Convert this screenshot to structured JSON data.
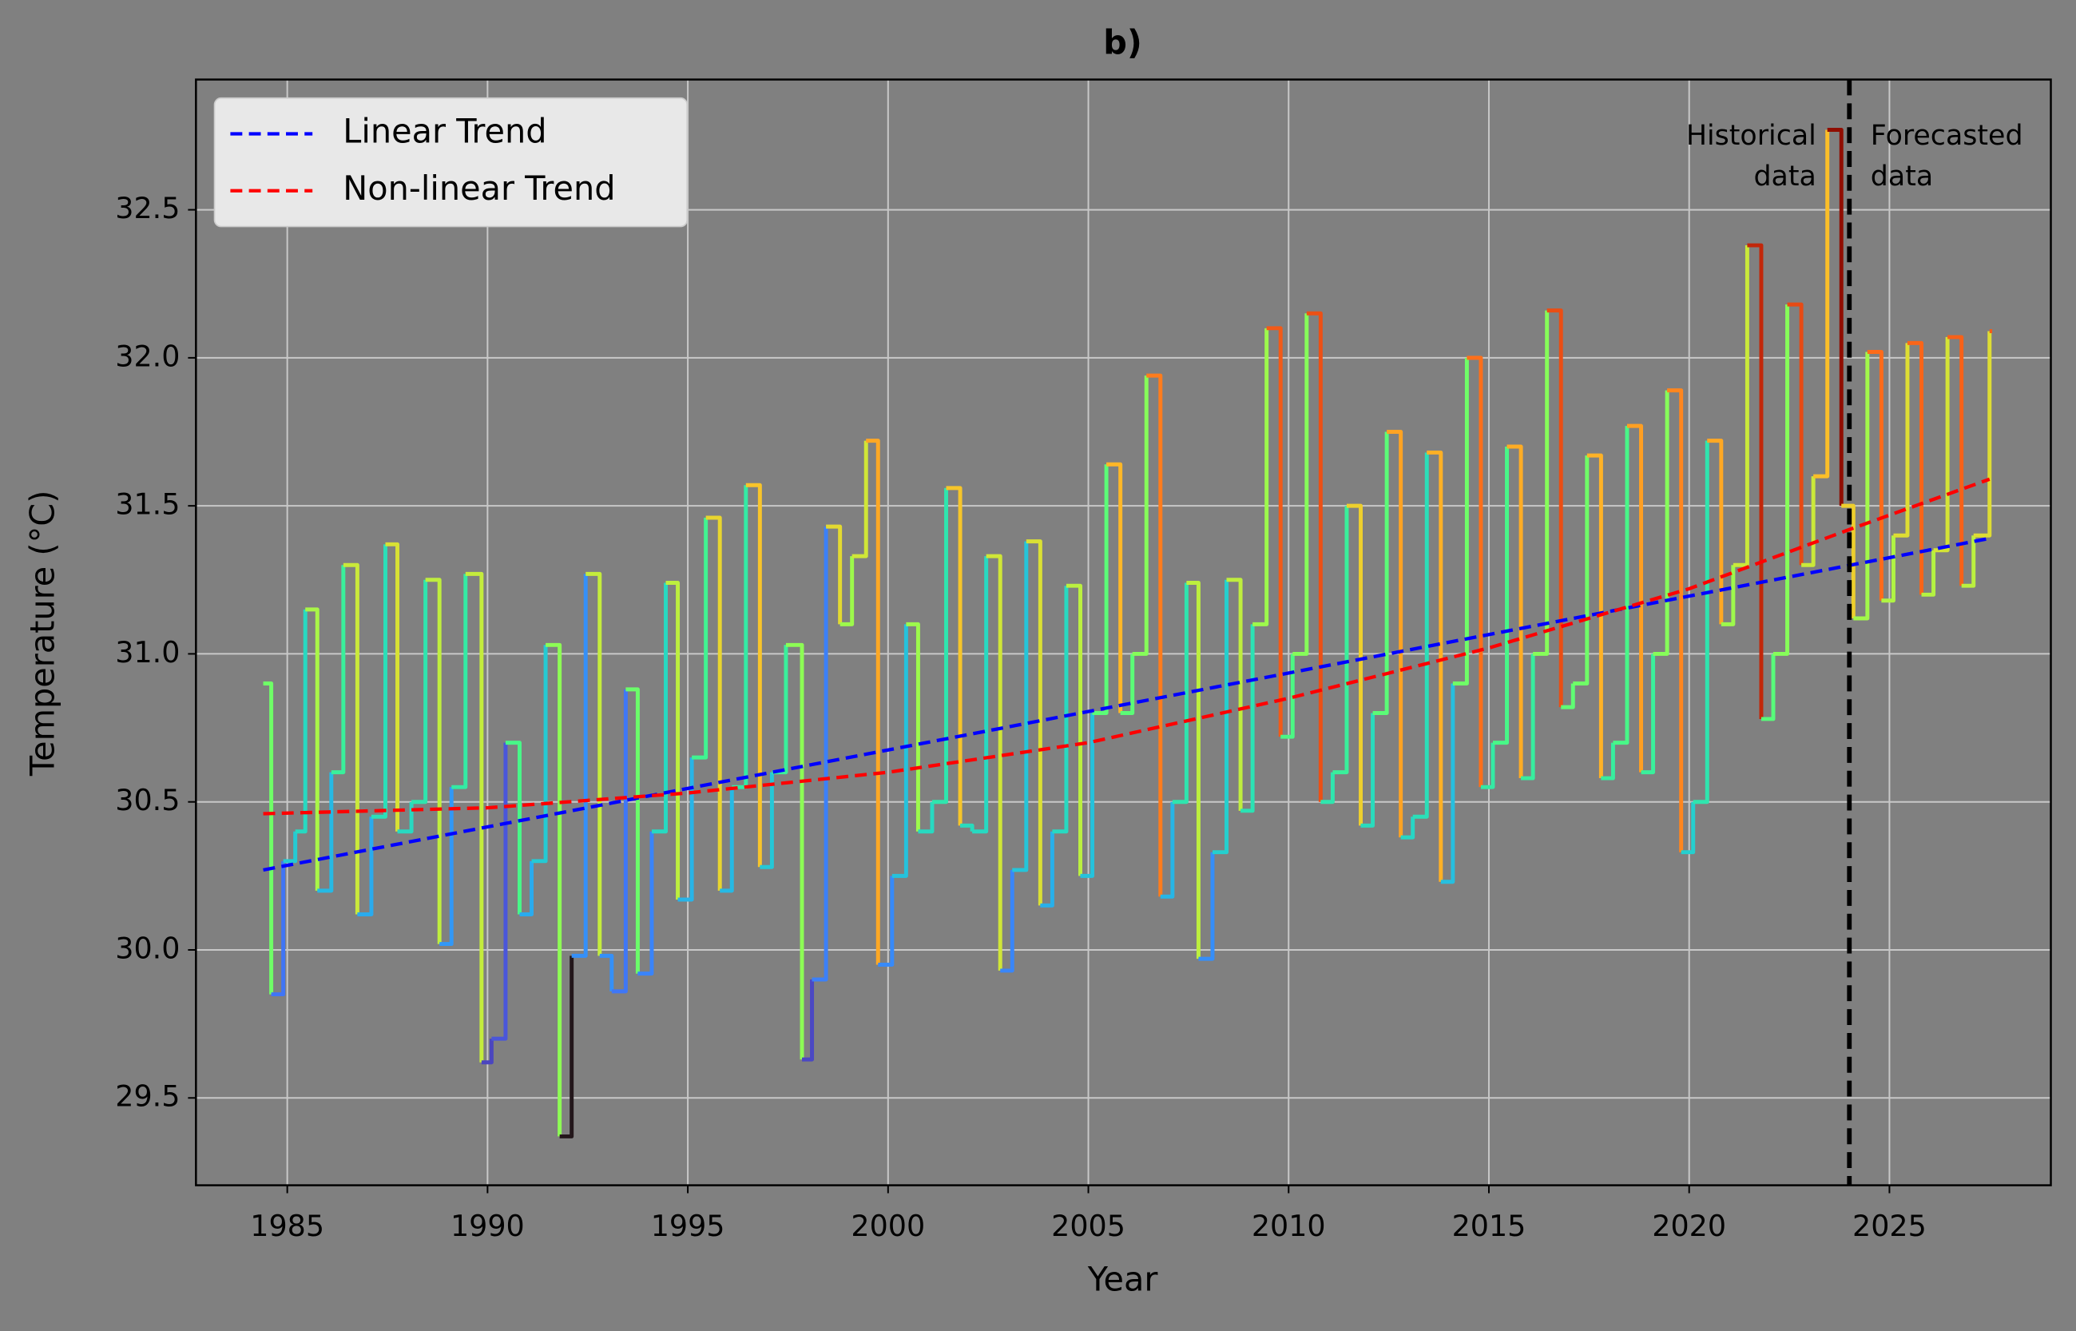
{
  "chart_data": {
    "type": "step",
    "title": "b)",
    "xlabel": "Year",
    "ylabel": "Temperature (°C)",
    "colormap": "turbo",
    "grid": true,
    "legend": "upper left",
    "xlim": [
      1982.72,
      2029.03
    ],
    "ylim": [
      29.205,
      32.94
    ],
    "xticks": [
      1985,
      1990,
      1995,
      2000,
      2005,
      2010,
      2015,
      2020,
      2025
    ],
    "yticks": [
      29.5,
      {
        "value": 30,
        "label": "30.0"
      },
      30.5,
      {
        "value": 31,
        "label": "31.0"
      },
      31.5,
      {
        "value": 32,
        "label": "32.0"
      },
      32.5
    ],
    "x": [
      1984.4,
      1984.6,
      1984.9,
      1985.2,
      1985.45,
      1985.75,
      1986.1,
      1986.4,
      1986.75,
      1987.1,
      1987.45,
      1987.75,
      1988.1,
      1988.45,
      1988.8,
      1989.1,
      1989.45,
      1989.85,
      1990.1,
      1990.45,
      1990.8,
      1991.1,
      1991.45,
      1991.8,
      1992.1,
      1992.45,
      1992.8,
      1993.1,
      1993.45,
      1993.75,
      1994.1,
      1994.45,
      1994.75,
      1995.1,
      1995.45,
      1995.8,
      1996.1,
      1996.45,
      1996.8,
      1997.1,
      1997.45,
      1997.85,
      1998.1,
      1998.45,
      1998.8,
      1999.1,
      1999.45,
      1999.75,
      2000.1,
      2000.45,
      2000.75,
      2001.1,
      2001.45,
      2001.8,
      2002.1,
      2002.45,
      2002.8,
      2003.1,
      2003.45,
      2003.8,
      2004.1,
      2004.45,
      2004.8,
      2005.1,
      2005.45,
      2005.8,
      2006.1,
      2006.45,
      2006.8,
      2007.1,
      2007.45,
      2007.75,
      2008.1,
      2008.45,
      2008.8,
      2009.1,
      2009.45,
      2009.8,
      2010.1,
      2010.45,
      2010.8,
      2011.1,
      2011.45,
      2011.8,
      2012.1,
      2012.45,
      2012.8,
      2013.1,
      2013.45,
      2013.8,
      2014.1,
      2014.45,
      2014.8,
      2015.1,
      2015.45,
      2015.8,
      2016.1,
      2016.45,
      2016.8,
      2017.1,
      2017.45,
      2017.8,
      2018.1,
      2018.45,
      2018.8,
      2019.1,
      2019.45,
      2019.8,
      2020.1,
      2020.45,
      2020.8,
      2021.1,
      2021.45,
      2021.8,
      2022.1,
      2022.45,
      2022.8,
      2023.1,
      2023.45,
      2023.8,
      2024.1,
      2024.45,
      2024.8,
      2025.1,
      2025.45,
      2025.8,
      2026.1,
      2026.45,
      2026.8,
      2027.1,
      2027.5
    ],
    "values": [
      30.9,
      29.85,
      30.3,
      30.4,
      31.15,
      30.2,
      30.6,
      31.3,
      30.12,
      30.45,
      31.37,
      30.4,
      30.5,
      31.25,
      30.02,
      30.55,
      31.27,
      29.62,
      29.7,
      30.7,
      30.12,
      30.3,
      31.03,
      29.37,
      29.98,
      31.27,
      29.98,
      29.86,
      30.88,
      29.92,
      30.4,
      31.24,
      30.17,
      30.65,
      31.46,
      30.2,
      30.55,
      31.57,
      30.28,
      30.6,
      31.03,
      29.63,
      29.9,
      31.43,
      31.1,
      31.33,
      31.72,
      29.95,
      30.25,
      31.1,
      30.4,
      30.5,
      31.56,
      30.42,
      30.4,
      31.33,
      29.93,
      30.27,
      31.38,
      30.15,
      30.4,
      31.23,
      30.25,
      30.8,
      31.64,
      30.8,
      31.0,
      31.94,
      30.18,
      30.5,
      31.24,
      29.97,
      30.33,
      31.25,
      30.47,
      31.1,
      32.1,
      30.72,
      31.0,
      32.15,
      30.5,
      30.6,
      31.5,
      30.42,
      30.8,
      31.75,
      30.38,
      30.45,
      31.68,
      30.23,
      30.9,
      32.0,
      30.55,
      30.7,
      31.7,
      30.58,
      31.0,
      32.16,
      30.82,
      30.9,
      31.67,
      30.58,
      30.7,
      31.77,
      30.6,
      31.0,
      31.89,
      30.33,
      30.5,
      31.72,
      31.1,
      31.3,
      32.38,
      30.78,
      31.0,
      32.18,
      31.3,
      31.6,
      32.77,
      31.5,
      31.12,
      32.02,
      31.18,
      31.4,
      32.05,
      31.2,
      31.35,
      32.07,
      31.23,
      31.4,
      32.09
    ],
    "series": [
      {
        "name": "Linear Trend",
        "color": "#0000ff",
        "x": [
          1984.4,
          2027.5
        ],
        "values": [
          30.27,
          31.39
        ]
      },
      {
        "name": "Non-linear Trend",
        "color": "#ff0000",
        "x": [
          1984.4,
          1990,
          1995,
          2000,
          2005,
          2010,
          2015,
          2020,
          2024,
          2027.5
        ],
        "values": [
          30.46,
          30.48,
          30.53,
          30.6,
          30.7,
          30.85,
          31.02,
          31.22,
          31.42,
          31.59
        ]
      }
    ],
    "vline": 2024,
    "annotations": [
      {
        "lines": [
          "Historical",
          "data"
        ],
        "side": "left"
      },
      {
        "lines": [
          "Forecasted",
          "data"
        ],
        "side": "right"
      }
    ]
  }
}
